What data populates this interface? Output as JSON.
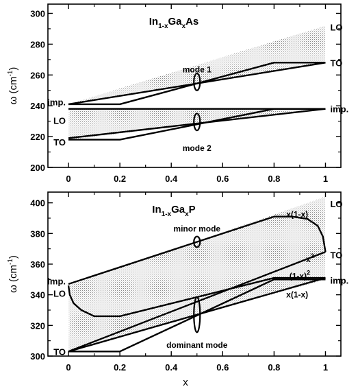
{
  "chart_data": [
    {
      "type": "line",
      "title": {
        "base": "In",
        "sub1": "1-x",
        "mid": "Ga",
        "sub2": "x",
        "tail": "As"
      },
      "xlabel": "",
      "ylabel": {
        "main": "ω (cm",
        "sup": "-1",
        "close": ")"
      },
      "xlim": [
        -0.08,
        1.06
      ],
      "ylim": [
        200,
        306
      ],
      "xticks": [
        0,
        0.2,
        0.4,
        0.6,
        0.8,
        1
      ],
      "xtick_labels": [
        "0",
        "0.2",
        "0.4",
        "0.6",
        "0.8",
        "1"
      ],
      "yticks": [
        200,
        220,
        240,
        260,
        280,
        300
      ],
      "ytick_labels": [
        "200",
        "220",
        "240",
        "260",
        "280",
        "300"
      ],
      "shaded_regions": [
        {
          "points": [
            [
              0,
              241
            ],
            [
              1,
              292
            ],
            [
              1,
              268
            ]
          ]
        },
        {
          "points": [
            [
              0,
              238
            ],
            [
              1,
              238
            ],
            [
              0,
              218
            ]
          ]
        }
      ],
      "series": [
        {
          "x": [
            0,
            0.2,
            0.8,
            1
          ],
          "y": [
            241,
            241,
            268,
            268
          ]
        },
        {
          "x": [
            0,
            1
          ],
          "y": [
            241,
            268
          ]
        },
        {
          "x": [
            0,
            0.8,
            1
          ],
          "y": [
            238,
            238,
            238
          ]
        },
        {
          "x": [
            0,
            1
          ],
          "y": [
            219,
            238
          ]
        },
        {
          "x": [
            0,
            0.2,
            0.8,
            1
          ],
          "y": [
            218,
            218,
            238,
            238
          ]
        }
      ],
      "ovals": [
        {
          "x": 0.5,
          "y": 255.5,
          "ry": 5.5
        },
        {
          "x": 0.5,
          "y": 229.5,
          "ry": 5.5
        }
      ],
      "annotations": [
        {
          "text": "LO",
          "x": 1.0,
          "y": 291,
          "anchor": "right"
        },
        {
          "text": "TO",
          "x": 1.0,
          "y": 268,
          "anchor": "right"
        },
        {
          "text": "imp.",
          "x": 1.0,
          "y": 238,
          "anchor": "right"
        },
        {
          "text": "mode 1",
          "x": 0.5,
          "y": 264,
          "anchor": "center"
        },
        {
          "text": "mode 2",
          "x": 0.5,
          "y": 213,
          "anchor": "center"
        },
        {
          "text": "imp.",
          "x": 0.0,
          "y": 242.5,
          "anchor": "left"
        },
        {
          "text": "LO",
          "x": 0.0,
          "y": 230.5,
          "anchor": "left"
        },
        {
          "text": "TO",
          "x": 0.0,
          "y": 216.5,
          "anchor": "left"
        }
      ],
      "grid": false
    },
    {
      "type": "line",
      "title": {
        "base": "In",
        "sub1": "1-x",
        "mid": "Ga",
        "sub2": "x",
        "tail": "P"
      },
      "xlabel": "x",
      "ylabel": {
        "main": "ω (cm",
        "sup": "-1",
        "close": ")"
      },
      "xlim": [
        -0.08,
        1.06
      ],
      "ylim": [
        300,
        407
      ],
      "xticks": [
        0,
        0.2,
        0.4,
        0.6,
        0.8,
        1
      ],
      "xtick_labels": [
        "0",
        "0.2",
        "0.4",
        "0.6",
        "0.8",
        "1"
      ],
      "yticks": [
        300,
        320,
        340,
        360,
        380,
        400
      ],
      "ytick_labels": [
        "300",
        "320",
        "340",
        "360",
        "380",
        "400"
      ],
      "shaded_regions": [
        {
          "points": [
            [
              0,
              346
            ],
            [
              1,
              404
            ],
            [
              1,
              350
            ],
            [
              0,
              303
            ]
          ]
        }
      ],
      "series": [
        {
          "x": [
            0,
            0.8,
            0.87,
            0.93,
            0.97,
            0.99,
            1.0
          ],
          "y": [
            347,
            391,
            391,
            389.5,
            385,
            378,
            368
          ]
        },
        {
          "x": [
            0,
            1
          ],
          "y": [
            303,
            368
          ]
        },
        {
          "x": [
            0,
            0.005,
            0.02,
            0.05,
            0.1,
            0.2,
            0.8,
            1
          ],
          "y": [
            346,
            340,
            334.5,
            330,
            326,
            326,
            351,
            351
          ]
        },
        {
          "x": [
            0,
            1
          ],
          "y": [
            303,
            351
          ]
        },
        {
          "x": [
            0,
            0.2,
            0.8,
            1
          ],
          "y": [
            303,
            303,
            350,
            350
          ]
        }
      ],
      "ovals": [
        {
          "x": 0.5,
          "y": 374.5,
          "ry": 3.5
        },
        {
          "x": 0.5,
          "y": 327,
          "ry": 11.5
        }
      ],
      "annotations": [
        {
          "text": "minor mode",
          "x": 0.5,
          "y": 383.5,
          "anchor": "center"
        },
        {
          "text": "dominant mode",
          "x": 0.5,
          "y": 307.5,
          "anchor": "center"
        },
        {
          "text": "LO",
          "x": 1.0,
          "y": 399.5,
          "anchor": "right"
        },
        {
          "text": "TO",
          "x": 1.0,
          "y": 366,
          "anchor": "right"
        },
        {
          "text": "imp.",
          "x": 1.0,
          "y": 349.5,
          "anchor": "right"
        },
        {
          "text": "x(1-x)",
          "x": 0.89,
          "y": 393,
          "anchor": "center"
        },
        {
          "text": "x",
          "sup": "2",
          "x": 0.94,
          "y": 363.5,
          "anchor": "center"
        },
        {
          "text": "(1-x)",
          "sup": "2",
          "x": 0.9,
          "y": 352.5,
          "anchor": "center"
        },
        {
          "text": "x(1-x)",
          "x": 0.89,
          "y": 340.5,
          "anchor": "center"
        },
        {
          "text": "imp.",
          "x": 0.0,
          "y": 349,
          "anchor": "left"
        },
        {
          "text": "LO",
          "x": 0.0,
          "y": 341,
          "anchor": "left"
        },
        {
          "text": "TO",
          "x": 0.0,
          "y": 303,
          "anchor": "left"
        }
      ],
      "grid": false
    }
  ]
}
